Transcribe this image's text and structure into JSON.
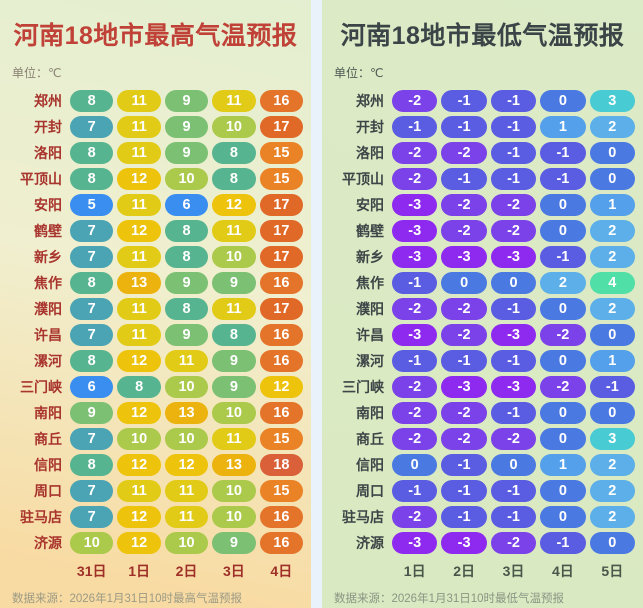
{
  "chart_data": [
    {
      "type": "heatmap",
      "title": "河南18地市最高气温预报",
      "unit_label": "单位：℃",
      "columns": [
        "31日",
        "1日",
        "2日",
        "3日",
        "4日"
      ],
      "rows": [
        {
          "city": "郑州",
          "values": [
            8,
            11,
            9,
            11,
            16
          ]
        },
        {
          "city": "开封",
          "values": [
            7,
            11,
            9,
            10,
            17
          ]
        },
        {
          "city": "洛阳",
          "values": [
            8,
            11,
            9,
            8,
            15
          ]
        },
        {
          "city": "平顶山",
          "values": [
            8,
            12,
            10,
            8,
            15
          ]
        },
        {
          "city": "安阳",
          "values": [
            5,
            11,
            6,
            12,
            17
          ]
        },
        {
          "city": "鹤壁",
          "values": [
            7,
            12,
            8,
            11,
            17
          ]
        },
        {
          "city": "新乡",
          "values": [
            7,
            11,
            8,
            10,
            17
          ]
        },
        {
          "city": "焦作",
          "values": [
            8,
            13,
            9,
            9,
            16
          ]
        },
        {
          "city": "濮阳",
          "values": [
            7,
            11,
            8,
            11,
            17
          ]
        },
        {
          "city": "许昌",
          "values": [
            7,
            11,
            9,
            8,
            16
          ]
        },
        {
          "city": "漯河",
          "values": [
            8,
            12,
            11,
            9,
            16
          ]
        },
        {
          "city": "三门峡",
          "values": [
            6,
            8,
            10,
            9,
            12
          ]
        },
        {
          "city": "南阳",
          "values": [
            9,
            12,
            13,
            10,
            16
          ]
        },
        {
          "city": "商丘",
          "values": [
            7,
            10,
            10,
            11,
            15
          ]
        },
        {
          "city": "信阳",
          "values": [
            8,
            12,
            12,
            13,
            18
          ]
        },
        {
          "city": "周口",
          "values": [
            7,
            11,
            11,
            10,
            15
          ]
        },
        {
          "city": "驻马店",
          "values": [
            7,
            12,
            11,
            10,
            16
          ]
        },
        {
          "city": "济源",
          "values": [
            10,
            12,
            10,
            9,
            16
          ]
        }
      ],
      "source": "数据来源：2026年1月31日10时最高气温预报",
      "scale": "max_scale",
      "theme": {
        "title": "#c04137",
        "city": "#a8342d",
        "date": "#9e2f28",
        "unit": "#8a8172",
        "source": "#9b9a85",
        "bg-top": "#e3efd0",
        "bg-mid": "#f0efcf",
        "bg-bot": "#f8dba3"
      }
    },
    {
      "type": "heatmap",
      "title": "河南18地市最低气温预报",
      "unit_label": "单位：℃",
      "columns": [
        "1日",
        "2日",
        "3日",
        "4日",
        "5日"
      ],
      "rows": [
        {
          "city": "郑州",
          "values": [
            -2,
            -1,
            -1,
            0,
            3
          ]
        },
        {
          "city": "开封",
          "values": [
            -1,
            -1,
            -1,
            1,
            2
          ]
        },
        {
          "city": "洛阳",
          "values": [
            -2,
            -2,
            -1,
            -1,
            0
          ]
        },
        {
          "city": "平顶山",
          "values": [
            -2,
            -1,
            -1,
            -1,
            0
          ]
        },
        {
          "city": "安阳",
          "values": [
            -3,
            -2,
            -2,
            0,
            1
          ]
        },
        {
          "city": "鹤壁",
          "values": [
            -3,
            -2,
            -2,
            0,
            2
          ]
        },
        {
          "city": "新乡",
          "values": [
            -3,
            -3,
            -3,
            -1,
            2
          ]
        },
        {
          "city": "焦作",
          "values": [
            -1,
            0,
            0,
            2,
            4
          ]
        },
        {
          "city": "濮阳",
          "values": [
            -2,
            -2,
            -1,
            0,
            2
          ]
        },
        {
          "city": "许昌",
          "values": [
            -3,
            -2,
            -3,
            -2,
            0
          ]
        },
        {
          "city": "漯河",
          "values": [
            -1,
            -1,
            -1,
            0,
            1
          ]
        },
        {
          "city": "三门峡",
          "values": [
            -2,
            -3,
            -3,
            -2,
            -1
          ]
        },
        {
          "city": "南阳",
          "values": [
            -2,
            -2,
            -1,
            0,
            0
          ]
        },
        {
          "city": "商丘",
          "values": [
            -2,
            -2,
            -2,
            0,
            3
          ]
        },
        {
          "city": "信阳",
          "values": [
            0,
            -1,
            0,
            1,
            2
          ]
        },
        {
          "city": "周口",
          "values": [
            -1,
            -1,
            -1,
            0,
            2
          ]
        },
        {
          "city": "驻马店",
          "values": [
            -2,
            -1,
            -1,
            0,
            2
          ]
        },
        {
          "city": "济源",
          "values": [
            -3,
            -3,
            -2,
            -1,
            0
          ]
        }
      ],
      "source": "数据来源：2026年1月31日10时最低气温预报",
      "scale": "min_scale",
      "theme": {
        "title": "#3b4446",
        "city": "#3d4547",
        "date": "#49564a",
        "unit": "#4e5a54",
        "source": "#8a9584",
        "bg-top": "#dcebc7",
        "bg-mid": "#dbeac4",
        "bg-bot": "#d9e9c1"
      }
    }
  ],
  "colors": {
    "page_bg": "#e9f1fa",
    "pill_text": "#ffffff",
    "max_scale": {
      "5": "#3a8ef0",
      "6": "#3a8ef0",
      "7": "#4aa4b4",
      "8": "#57b490",
      "9": "#7cc074",
      "10": "#abc94a",
      "11": "#e2cb17",
      "12": "#eec30c",
      "13": "#ecb20d",
      "14": "#ec9c20",
      "15": "#ea8226",
      "16": "#e3742a",
      "17": "#e06928",
      "18": "#d96038"
    },
    "min_scale": {
      "-3": "#8e2af0",
      "-2": "#7a42e8",
      "-1": "#5a5ce2",
      "0": "#4b79e2",
      "1": "#55a0ea",
      "2": "#5cafe8",
      "3": "#48cbd2",
      "4": "#50dfa6"
    }
  }
}
